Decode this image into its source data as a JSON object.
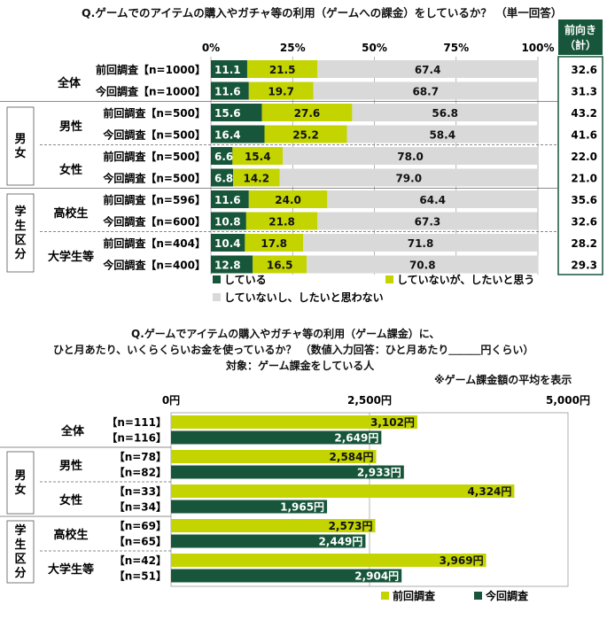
{
  "colors": {
    "dark": "#17563a",
    "lime": "#c3d400",
    "gray": "#d9d9d9"
  },
  "chart_data": [
    {
      "type": "bar",
      "stacked": true,
      "orientation": "horizontal",
      "title": "Q.ゲームでのアイテムの購入やガチャ等の利用（ゲームへの課金）をしているか？ （単一回答）",
      "xlim": [
        0,
        100
      ],
      "x_ticks": [
        "0%",
        "25%",
        "50%",
        "75%",
        "100%"
      ],
      "side_header": "前向き（計）",
      "side_header_lines": [
        "前向き",
        "（計）"
      ],
      "legend": [
        "している",
        "していないが、したいと思う",
        "していないし、したいと思わない"
      ],
      "groups": [
        {
          "outer": "",
          "label": "全体",
          "rows": [
            {
              "label": "前回調査【n=1000】",
              "values": [
                11.1,
                21.5,
                67.4
              ],
              "total": "32.6"
            },
            {
              "label": "今回調査【n=1000】",
              "values": [
                11.6,
                19.7,
                68.7
              ],
              "total": "31.3"
            }
          ]
        },
        {
          "outer": "男女",
          "label": "男性",
          "rows": [
            {
              "label": "前回調査【n=500】",
              "values": [
                15.6,
                27.6,
                56.8
              ],
              "total": "43.2"
            },
            {
              "label": "今回調査【n=500】",
              "values": [
                16.4,
                25.2,
                58.4
              ],
              "total": "41.6"
            }
          ]
        },
        {
          "outer": "男女",
          "label": "女性",
          "rows": [
            {
              "label": "前回調査【n=500】",
              "values": [
                6.6,
                15.4,
                78.0
              ],
              "total": "22.0"
            },
            {
              "label": "今回調査【n=500】",
              "values": [
                6.8,
                14.2,
                79.0
              ],
              "total": "21.0"
            }
          ]
        },
        {
          "outer": "学生区分",
          "label": "高校生",
          "rows": [
            {
              "label": "前回調査【n=596】",
              "values": [
                11.6,
                24.0,
                64.4
              ],
              "total": "35.6"
            },
            {
              "label": "今回調査【n=600】",
              "values": [
                10.8,
                21.8,
                67.3
              ],
              "total": "32.6"
            }
          ]
        },
        {
          "outer": "学生区分",
          "label": "大学生等",
          "rows": [
            {
              "label": "前回調査【n=404】",
              "values": [
                10.4,
                17.8,
                71.8
              ],
              "total": "28.2"
            },
            {
              "label": "今回調査【n=400】",
              "values": [
                12.8,
                16.5,
                70.8
              ],
              "total": "29.3"
            }
          ]
        }
      ]
    },
    {
      "type": "bar",
      "orientation": "horizontal",
      "title_lines": [
        "Q.ゲームでアイテムの購入やガチャ等の利用（ゲーム課金）に、",
        "ひと月あたり、いくらくらいお金を使っているか？ （数値入力回答：ひと月あたり＿＿＿円くらい）",
        "対象：ゲーム課金をしている人"
      ],
      "note": "※ゲーム課金額の平均を表示",
      "xlim": [
        0,
        5000
      ],
      "x_ticks": [
        "0円",
        "2,500円",
        "5,000円"
      ],
      "legend": [
        "前回調査",
        "今回調査"
      ],
      "groups": [
        {
          "outer": "",
          "label": "全体",
          "rows": [
            {
              "n": "【n=111】",
              "value": 3102,
              "text": "3,102円"
            },
            {
              "n": "【n=116】",
              "value": 2649,
              "text": "2,649円"
            }
          ]
        },
        {
          "outer": "男女",
          "label": "男性",
          "rows": [
            {
              "n": "【n=78】",
              "value": 2584,
              "text": "2,584円"
            },
            {
              "n": "【n=82】",
              "value": 2933,
              "text": "2,933円"
            }
          ]
        },
        {
          "outer": "男女",
          "label": "女性",
          "rows": [
            {
              "n": "【n=33】",
              "value": 4324,
              "text": "4,324円"
            },
            {
              "n": "【n=34】",
              "value": 1965,
              "text": "1,965円"
            }
          ]
        },
        {
          "outer": "学生区分",
          "label": "高校生",
          "rows": [
            {
              "n": "【n=69】",
              "value": 2573,
              "text": "2,573円"
            },
            {
              "n": "【n=65】",
              "value": 2449,
              "text": "2,449円"
            }
          ]
        },
        {
          "outer": "学生区分",
          "label": "大学生等",
          "rows": [
            {
              "n": "【n=42】",
              "value": 3969,
              "text": "3,969円"
            },
            {
              "n": "【n=51】",
              "value": 2904,
              "text": "2,904円"
            }
          ]
        }
      ]
    }
  ]
}
